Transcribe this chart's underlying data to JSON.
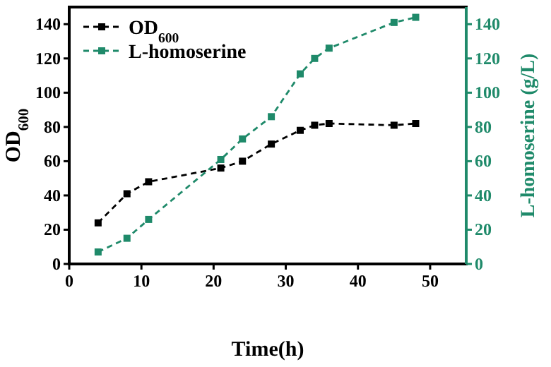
{
  "chart_data": {
    "type": "line",
    "xlabel": "Time(h)",
    "ylabel": "OD$_{600}$",
    "y2label": "L-homoserine (g/L)",
    "xlim": [
      0,
      55
    ],
    "xticks": [
      0,
      10,
      20,
      30,
      40,
      50
    ],
    "ylim": [
      0,
      150
    ],
    "yticks": [
      0,
      20,
      40,
      60,
      80,
      100,
      120,
      140
    ],
    "y2lim": [
      0,
      150
    ],
    "y2ticks": [
      0,
      20,
      40,
      60,
      80,
      100,
      120,
      140
    ],
    "x": [
      4,
      8,
      11,
      21,
      24,
      28,
      32,
      34,
      36,
      45,
      48
    ],
    "series": [
      {
        "name": "OD$_{600}$",
        "color": "#000000",
        "values": [
          24,
          41,
          48,
          56,
          60,
          70,
          78,
          81,
          82,
          81,
          82
        ]
      },
      {
        "name": "L-homoserine",
        "color": "#1f8a6a",
        "axis": "y2",
        "values": [
          7,
          15,
          26,
          61,
          73,
          86,
          111,
          120,
          126,
          141,
          144
        ]
      }
    ],
    "marker": "square",
    "line_style": "dashed",
    "legend": "top left",
    "grid": false
  }
}
